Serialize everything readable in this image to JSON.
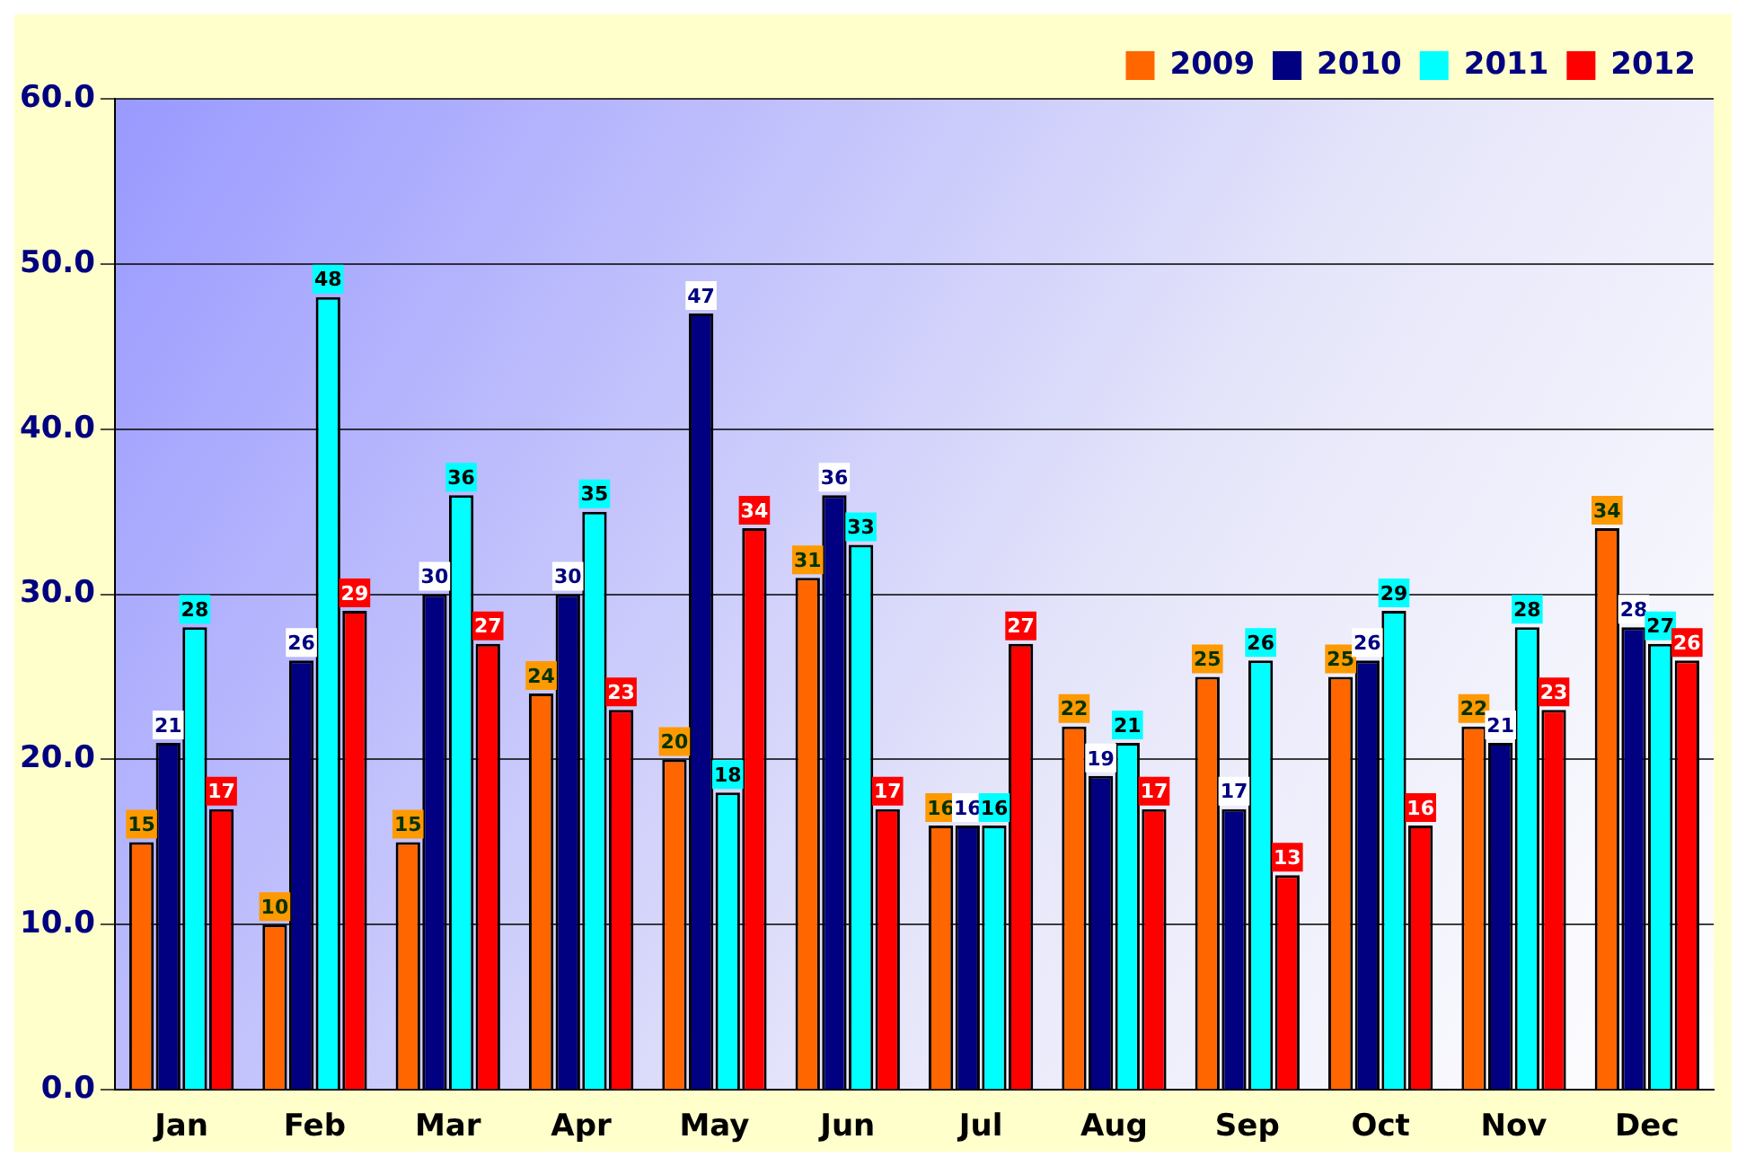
{
  "chart_data": {
    "type": "bar",
    "categories": [
      "Jan",
      "Feb",
      "Mar",
      "Apr",
      "May",
      "Jun",
      "Jul",
      "Aug",
      "Sep",
      "Oct",
      "Nov",
      "Dec"
    ],
    "series": [
      {
        "name": "2009",
        "color": "#ff6600",
        "values": [
          15,
          10,
          15,
          24,
          20,
          31,
          16,
          22,
          25,
          25,
          22,
          34
        ]
      },
      {
        "name": "2010",
        "color": "#000080",
        "values": [
          21,
          26,
          30,
          30,
          47,
          36,
          16,
          19,
          17,
          26,
          21,
          28
        ]
      },
      {
        "name": "2011",
        "color": "#00ffff",
        "values": [
          28,
          48,
          36,
          35,
          18,
          33,
          16,
          21,
          26,
          29,
          28,
          27
        ]
      },
      {
        "name": "2012",
        "color": "#ff0000",
        "values": [
          17,
          29,
          27,
          23,
          34,
          17,
          27,
          17,
          13,
          16,
          23,
          26
        ]
      }
    ],
    "ylim": [
      0,
      60
    ],
    "yticks": [
      {
        "value": 0,
        "label": "0.0"
      },
      {
        "value": 10,
        "label": "10.0"
      },
      {
        "value": 20,
        "label": "20.0"
      },
      {
        "value": 30,
        "label": "30.0"
      },
      {
        "value": 40,
        "label": "40.0"
      },
      {
        "value": 50,
        "label": "50.0"
      },
      {
        "value": 60,
        "label": "60.0"
      }
    ],
    "grid": "y",
    "legend": "top right",
    "data_labels": true
  }
}
